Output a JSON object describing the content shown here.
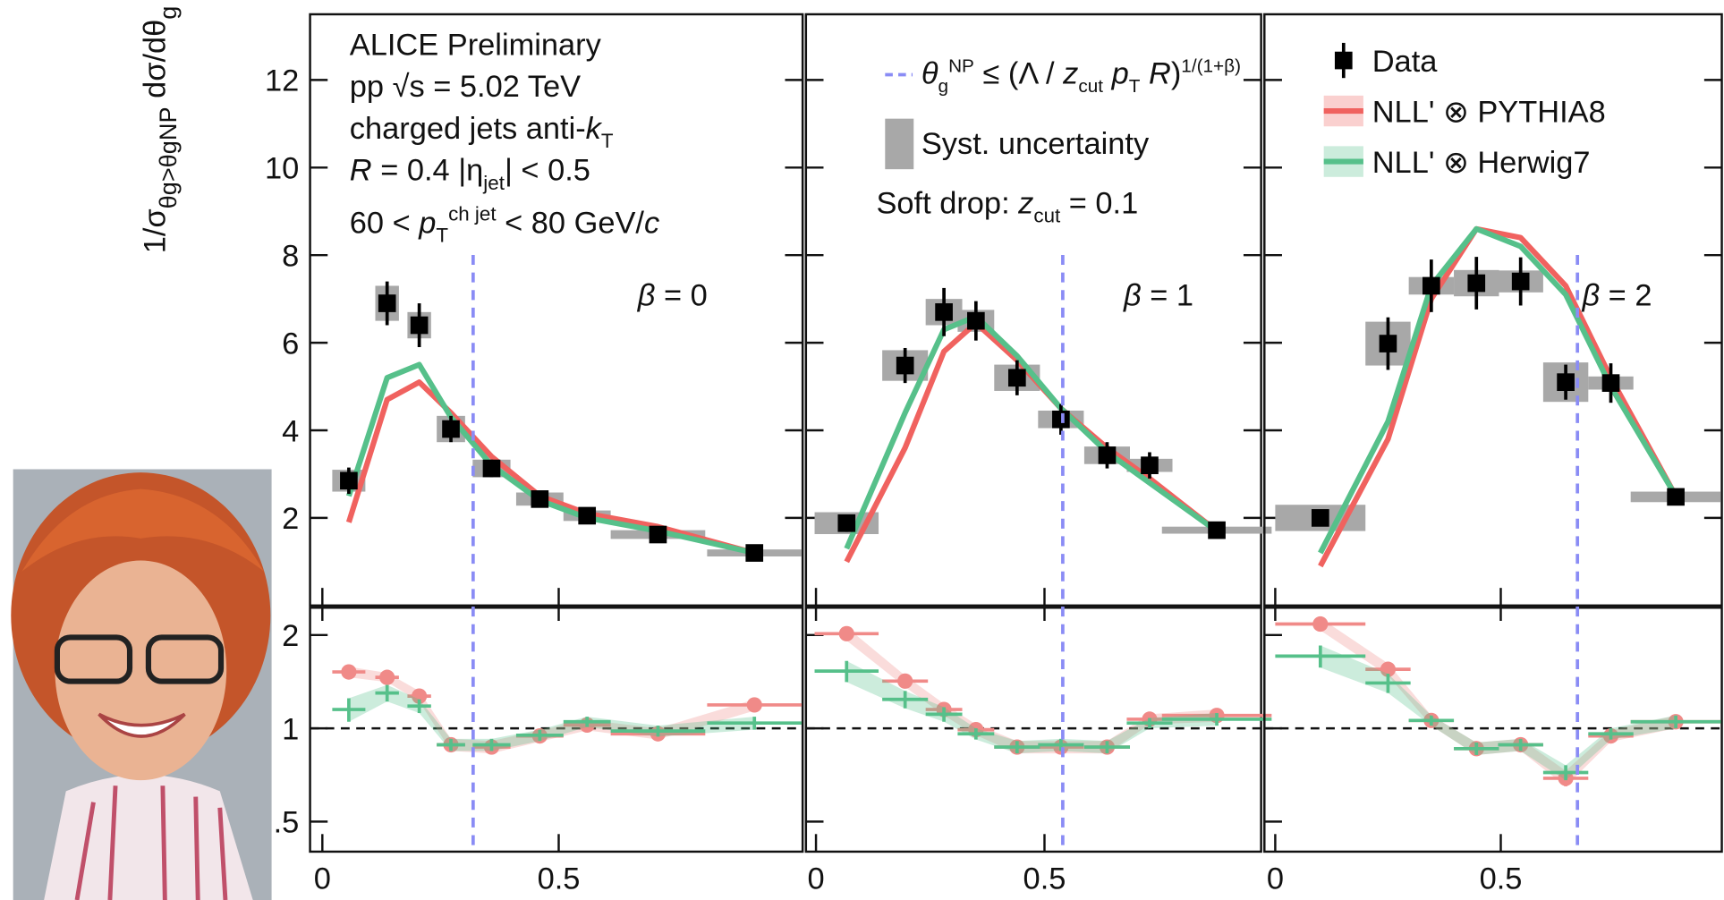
{
  "chart_data": [
    {
      "type": "errorbar",
      "ylabel": [
        {
          "text": "1/σ"
        },
        {
          "text": "θg>θgNP",
          "pos": "sub"
        },
        {
          "text": "  dσ/dθ"
        },
        {
          "text": "g",
          "pos": "sub"
        }
      ],
      "text_lines": [
        [
          {
            "text": "ALICE Preliminary"
          }
        ],
        [
          {
            "text": "pp  √s = 5.02 TeV"
          }
        ],
        [
          {
            "text": "charged jets   anti-"
          },
          {
            "text": "k",
            "pos": "it"
          },
          {
            "text": "T",
            "pos": "sub"
          }
        ],
        [
          {
            "text": "R",
            "pos": "it"
          },
          {
            "text": " = 0.4    |η"
          },
          {
            "text": "jet",
            "pos": "sub"
          },
          {
            "text": "| < 0.5"
          }
        ],
        [
          {
            "text": "60 < "
          },
          {
            "text": "p",
            "pos": "it"
          },
          {
            "text": "T",
            "pos": "sub"
          },
          {
            "text": "ch jet",
            "pos": "sup"
          },
          {
            "text": " < 80 GeV/"
          },
          {
            "text": "c",
            "pos": "it"
          }
        ]
      ],
      "beta_label": [
        {
          "text": "β",
          "pos": "it"
        },
        {
          "text": " = 0"
        }
      ],
      "xlim": [
        -0.026,
        1.016
      ],
      "xticks": [
        0,
        0.5
      ],
      "ylim": [
        0,
        13.5
      ],
      "yticks": [
        2,
        4,
        6,
        8,
        10,
        12
      ],
      "np_threshold": 0.319,
      "x": [
        0.056,
        0.137,
        0.205,
        0.272,
        0.358,
        0.46,
        0.56,
        0.71,
        0.914
      ],
      "series": [
        {
          "color": "#000000",
          "values": [
            2.85,
            6.9,
            6.4,
            4.03,
            3.13,
            2.43,
            2.05,
            1.62,
            1.2
          ],
          "errors": [
            0.3,
            0.5,
            0.5,
            0.3,
            0.2,
            0.15,
            0.15,
            0.1,
            0.1
          ],
          "xerr": [
            0.035,
            0.025,
            0.025,
            0.03,
            0.04,
            0.05,
            0.05,
            0.1,
            0.1
          ],
          "syst": [
            0.25,
            0.4,
            0.3,
            0.3,
            0.2,
            0.15,
            0.12,
            0.1,
            0.08
          ],
          "syst_color": "#a8a8a8"
        },
        {
          "color": "#f0625f",
          "values": [
            1.9,
            4.7,
            5.1,
            4.4,
            3.4,
            2.5,
            2.1,
            1.8,
            1.2
          ]
        },
        {
          "color": "#56c08a",
          "values": [
            2.5,
            5.2,
            5.5,
            4.3,
            3.2,
            2.4,
            2.0,
            1.7,
            1.2
          ]
        }
      ],
      "ratio": {
        "log": true,
        "ylim": [
          0.4,
          2.45
        ],
        "yticks": [
          {
            "value": 0.5,
            "label": ".5"
          },
          1,
          2
        ],
        "reference": 1,
        "series": [
          {
            "color": "#f08a88",
            "values": [
              1.52,
              1.46,
              1.27,
              0.885,
              0.87,
              0.945,
              1.025,
              0.96,
              1.19
            ],
            "errors": [
              0.06,
              0.05,
              0.05,
              0.04,
              0.04,
              0.04,
              0.04,
              0.04,
              0.05
            ]
          },
          {
            "color": "#56c08a",
            "values": [
              1.15,
              1.3,
              1.18,
              0.885,
              0.885,
              0.95,
              1.05,
              0.98,
              1.04
            ],
            "errors": [
              0.1,
              0.08,
              0.06,
              0.04,
              0.04,
              0.04,
              0.04,
              0.04,
              0.05
            ]
          }
        ]
      }
    },
    {
      "type": "errorbar",
      "np_label": [
        {
          "text": "θ",
          "pos": "it"
        },
        {
          "text": "g",
          "pos": "sub"
        },
        {
          "text": "NP",
          "pos": "sup"
        },
        {
          "text": " ≤ (Λ / "
        },
        {
          "text": "z",
          "pos": "it"
        },
        {
          "text": "cut",
          "pos": "sub"
        },
        {
          "text": " p",
          "pos": "it"
        },
        {
          "text": "T",
          "pos": "sub"
        },
        {
          "text": " R",
          "pos": "it"
        },
        {
          "text": ")"
        },
        {
          "text": "1/(1+β)",
          "pos": "sup"
        }
      ],
      "syst_label": "Syst. uncertainty",
      "soft_drop_label": [
        {
          "text": "Soft drop: "
        },
        {
          "text": "z",
          "pos": "it"
        },
        {
          "text": "cut",
          "pos": "sub"
        },
        {
          "text": " = 0.1"
        }
      ],
      "beta_label": [
        {
          "text": "β",
          "pos": "it"
        },
        {
          "text": " = 1"
        }
      ],
      "xlim": [
        -0.022,
        0.974
      ],
      "xticks": [
        0,
        0.5
      ],
      "ylim": [
        0,
        13.5
      ],
      "np_threshold": 0.54,
      "x": [
        0.067,
        0.195,
        0.28,
        0.35,
        0.44,
        0.536,
        0.637,
        0.73,
        0.877
      ],
      "series": [
        {
          "color": "#000000",
          "values": [
            1.88,
            5.48,
            6.7,
            6.5,
            5.2,
            4.25,
            3.43,
            3.2,
            1.72
          ],
          "errors": [
            0.2,
            0.4,
            0.55,
            0.45,
            0.4,
            0.35,
            0.3,
            0.3,
            0.1
          ],
          "xerr": [
            0.07,
            0.05,
            0.04,
            0.04,
            0.05,
            0.05,
            0.05,
            0.05,
            0.12
          ],
          "syst": [
            0.25,
            0.35,
            0.3,
            0.25,
            0.3,
            0.2,
            0.2,
            0.15,
            0.08
          ],
          "syst_color": "#a8a8a8"
        },
        {
          "color": "#f0625f",
          "values": [
            1.0,
            3.6,
            5.8,
            6.45,
            5.6,
            4.5,
            3.6,
            2.9,
            1.7
          ]
        },
        {
          "color": "#56c08a",
          "values": [
            1.3,
            4.4,
            6.3,
            6.6,
            5.7,
            4.5,
            3.5,
            2.8,
            1.7
          ]
        }
      ],
      "ratio": {
        "log": true,
        "ylim": [
          0.4,
          2.45
        ],
        "reference": 1,
        "series": [
          {
            "color": "#f08a88",
            "values": [
              2.02,
              1.42,
              1.15,
              0.99,
              0.87,
              0.87,
              0.87,
              1.07,
              1.1
            ],
            "errors": [
              0.1,
              0.06,
              0.05,
              0.04,
              0.04,
              0.04,
              0.04,
              0.04,
              0.05
            ]
          },
          {
            "color": "#56c08a",
            "values": [
              1.53,
              1.24,
              1.11,
              0.96,
              0.87,
              0.885,
              0.87,
              1.04,
              1.07
            ],
            "errors": [
              0.12,
              0.08,
              0.06,
              0.04,
              0.04,
              0.04,
              0.04,
              0.04,
              0.05
            ]
          }
        ]
      }
    },
    {
      "type": "errorbar",
      "beta_label": [
        {
          "text": "β",
          "pos": "it"
        },
        {
          "text": " = 2"
        }
      ],
      "xlim": [
        -0.024,
        0.99
      ],
      "xticks": [
        0,
        0.5
      ],
      "ylim": [
        0,
        13.5
      ],
      "np_threshold": 0.67,
      "x": [
        0.1,
        0.25,
        0.346,
        0.446,
        0.544,
        0.644,
        0.744,
        0.888
      ],
      "series": [
        {
          "name": "Data",
          "color": "#000000",
          "values": [
            2.0,
            5.98,
            7.3,
            7.36,
            7.4,
            5.1,
            5.08,
            2.48
          ],
          "errors": [
            0.15,
            0.6,
            0.6,
            0.6,
            0.55,
            0.4,
            0.45,
            0.15
          ],
          "xerr": [
            0.1,
            0.05,
            0.05,
            0.05,
            0.05,
            0.05,
            0.05,
            0.1
          ],
          "syst": [
            0.3,
            0.5,
            0.2,
            0.3,
            0.25,
            0.45,
            0.15,
            0.12
          ],
          "syst_color": "#a8a8a8"
        },
        {
          "name": "NLL' ⊗ PYTHIA8",
          "color": "#f0625f",
          "values": [
            0.9,
            3.8,
            7.0,
            8.6,
            8.4,
            7.3,
            5.2,
            2.5
          ]
        },
        {
          "name": "NLL' ⊗ Herwig7",
          "color": "#56c08a",
          "values": [
            1.2,
            4.2,
            7.3,
            8.6,
            8.2,
            7.1,
            5.0,
            2.5
          ]
        }
      ],
      "ratio": {
        "log": true,
        "ylim": [
          0.4,
          2.45
        ],
        "reference": 1,
        "series": [
          {
            "color": "#f08a88",
            "values": [
              2.17,
              1.55,
              1.06,
              0.86,
              0.885,
              0.69,
              0.945,
              1.05
            ],
            "errors": [
              0.1,
              0.07,
              0.04,
              0.04,
              0.04,
              0.04,
              0.04,
              0.05
            ]
          },
          {
            "color": "#56c08a",
            "values": [
              1.71,
              1.4,
              1.06,
              0.86,
              0.885,
              0.72,
              0.96,
              1.05
            ],
            "errors": [
              0.14,
              0.1,
              0.04,
              0.04,
              0.04,
              0.04,
              0.04,
              0.05
            ]
          }
        ]
      }
    }
  ]
}
